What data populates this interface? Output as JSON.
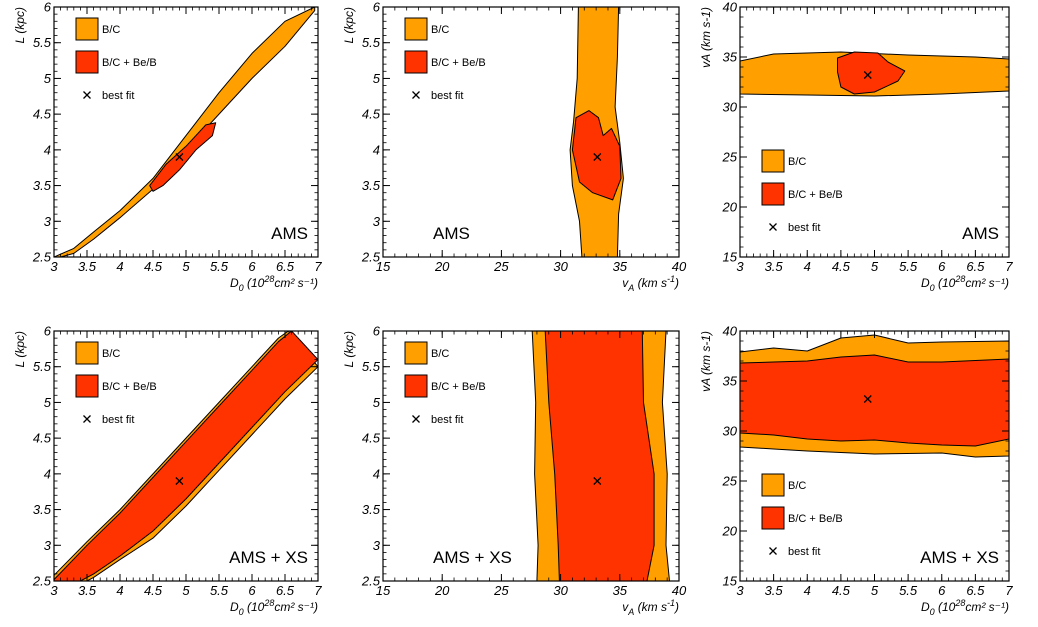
{
  "chart_data": [
    {
      "id": "p11",
      "type": "contour",
      "dataset": "AMS",
      "x": "D0",
      "y": "L",
      "xlabel_main": "D",
      "xlabel_sub": "0",
      "xlabel_unit_pre": "(10",
      "xlabel_unit_sup": "28",
      "xlabel_unit_post": "cm² s⁻¹)",
      "ylabel": "L (kpc)",
      "xlim": [
        3,
        7
      ],
      "ylim": [
        2.5,
        6
      ],
      "xticks": [
        "3",
        "3.5",
        "4",
        "4.5",
        "5",
        "5.5",
        "6",
        "6.5",
        "7"
      ],
      "yticks": [
        "2.5",
        "3",
        "3.5",
        "4",
        "4.5",
        "5",
        "5.5",
        "6"
      ],
      "legend": {
        "position": "top-left",
        "entries": [
          "B/C",
          "B/C + Be/B",
          "best fit"
        ]
      },
      "best_fit": [
        4.9,
        3.9
      ],
      "regions": [
        {
          "name": "B/C",
          "color": "#ffa000",
          "upper": [
            [
              3.0,
              2.5
            ],
            [
              3.3,
              2.62
            ],
            [
              3.6,
              2.85
            ],
            [
              4.0,
              3.15
            ],
            [
              4.5,
              3.6
            ],
            [
              5.0,
              4.2
            ],
            [
              5.5,
              4.8
            ],
            [
              6.0,
              5.35
            ],
            [
              6.5,
              5.8
            ],
            [
              6.95,
              6.0
            ]
          ],
          "lower": [
            [
              6.95,
              5.95
            ],
            [
              6.5,
              5.45
            ],
            [
              6.0,
              5.0
            ],
            [
              5.5,
              4.5
            ],
            [
              5.0,
              4.0
            ],
            [
              4.5,
              3.45
            ],
            [
              4.0,
              3.05
            ],
            [
              3.6,
              2.75
            ],
            [
              3.3,
              2.55
            ],
            [
              3.1,
              2.5
            ]
          ]
        },
        {
          "name": "B/C + Be/B",
          "color": "#ff3300",
          "boundary": [
            [
              4.45,
              3.5
            ],
            [
              4.7,
              3.8
            ],
            [
              5.0,
              4.05
            ],
            [
              5.3,
              4.35
            ],
            [
              5.45,
              4.38
            ],
            [
              5.4,
              4.2
            ],
            [
              5.15,
              4.0
            ],
            [
              4.9,
              3.72
            ],
            [
              4.65,
              3.5
            ],
            [
              4.5,
              3.42
            ]
          ]
        }
      ],
      "annotation": "AMS"
    },
    {
      "id": "p12",
      "type": "contour",
      "dataset": "AMS",
      "x": "vA",
      "y": "L",
      "xlabel_main": "v",
      "xlabel_sub": "A",
      "xlabel_unit_pre": "(km s",
      "xlabel_unit_sup": "-1",
      "xlabel_unit_post": ")",
      "ylabel": "L (kpc)",
      "xlim": [
        15,
        40
      ],
      "ylim": [
        2.5,
        6
      ],
      "xticks": [
        "15",
        "20",
        "25",
        "30",
        "35",
        "40"
      ],
      "yticks": [
        "2.5",
        "3",
        "3.5",
        "4",
        "4.5",
        "5",
        "5.5",
        "6"
      ],
      "legend": {
        "position": "top-left",
        "entries": [
          "B/C",
          "B/C + Be/B",
          "best fit"
        ]
      },
      "best_fit": [
        33.1,
        3.9
      ],
      "regions": [
        {
          "name": "B/C",
          "color": "#ffa000",
          "boundary": [
            [
              31.5,
              6.0
            ],
            [
              31.4,
              5.0
            ],
            [
              31.1,
              4.4
            ],
            [
              30.8,
              4.0
            ],
            [
              31.0,
              3.5
            ],
            [
              31.6,
              3.0
            ],
            [
              31.8,
              2.5
            ],
            [
              34.8,
              2.5
            ],
            [
              34.9,
              3.1
            ],
            [
              35.3,
              3.6
            ],
            [
              35.0,
              4.1
            ],
            [
              34.6,
              4.6
            ],
            [
              34.8,
              5.3
            ],
            [
              34.9,
              6.0
            ]
          ]
        },
        {
          "name": "B/C + Be/B",
          "color": "#ff3300",
          "boundary": [
            [
              31.3,
              4.45
            ],
            [
              31.0,
              4.0
            ],
            [
              31.6,
              3.55
            ],
            [
              32.7,
              3.4
            ],
            [
              34.4,
              3.3
            ],
            [
              35.1,
              3.6
            ],
            [
              35.0,
              4.05
            ],
            [
              34.3,
              4.3
            ],
            [
              33.6,
              4.2
            ],
            [
              33.2,
              4.45
            ],
            [
              32.4,
              4.55
            ]
          ]
        }
      ],
      "annotation": "AMS"
    },
    {
      "id": "p13",
      "type": "contour",
      "dataset": "AMS",
      "x": "D0",
      "y": "vA",
      "xlabel_main": "D",
      "xlabel_sub": "0",
      "xlabel_unit_pre": "(10",
      "xlabel_unit_sup": "28",
      "xlabel_unit_post": "cm² s⁻¹)",
      "ylabel": "vA (km s-1)",
      "xlim": [
        3,
        7
      ],
      "ylim": [
        15,
        40
      ],
      "xticks": [
        "3",
        "3.5",
        "4",
        "4.5",
        "5",
        "5.5",
        "6",
        "6.5",
        "7"
      ],
      "yticks": [
        "15",
        "20",
        "25",
        "30",
        "35",
        "40"
      ],
      "legend": {
        "position": "middle-left",
        "entries": [
          "B/C",
          "B/C + Be/B",
          "best fit"
        ]
      },
      "best_fit": [
        4.9,
        33.2
      ],
      "regions": [
        {
          "name": "B/C",
          "color": "#ffa000",
          "boundary": [
            [
              3.0,
              34.6
            ],
            [
              3.5,
              35.3
            ],
            [
              4.5,
              35.5
            ],
            [
              5.5,
              35.2
            ],
            [
              6.5,
              35.0
            ],
            [
              7.0,
              34.8
            ],
            [
              7.0,
              31.6
            ],
            [
              6.0,
              31.3
            ],
            [
              5.0,
              31.1
            ],
            [
              4.0,
              31.2
            ],
            [
              3.0,
              31.3
            ]
          ]
        },
        {
          "name": "B/C + Be/B",
          "color": "#ff3300",
          "boundary": [
            [
              4.45,
              34.9
            ],
            [
              4.7,
              35.5
            ],
            [
              5.05,
              35.4
            ],
            [
              5.2,
              34.5
            ],
            [
              5.45,
              33.6
            ],
            [
              5.35,
              32.6
            ],
            [
              5.0,
              31.5
            ],
            [
              4.7,
              31.3
            ],
            [
              4.5,
              32.0
            ],
            [
              4.45,
              33.5
            ]
          ]
        }
      ],
      "annotation": "AMS"
    },
    {
      "id": "p21",
      "type": "contour",
      "dataset": "AMS + XS",
      "x": "D0",
      "y": "L",
      "xlabel_main": "D",
      "xlabel_sub": "0",
      "xlabel_unit_pre": "(10",
      "xlabel_unit_sup": "28",
      "xlabel_unit_post": "cm² s⁻¹)",
      "ylabel": "L (kpc)",
      "xlim": [
        3,
        7
      ],
      "ylim": [
        2.5,
        6
      ],
      "xticks": [
        "3",
        "3.5",
        "4",
        "4.5",
        "5",
        "5.5",
        "6",
        "6.5",
        "7"
      ],
      "yticks": [
        "2.5",
        "3",
        "3.5",
        "4",
        "4.5",
        "5",
        "5.5",
        "6"
      ],
      "legend": {
        "position": "top-left",
        "entries": [
          "B/C",
          "B/C + Be/B",
          "best fit"
        ]
      },
      "best_fit": [
        4.9,
        3.9
      ],
      "regions": [
        {
          "name": "B/C",
          "color": "#ffa000",
          "upper": [
            [
              3.0,
              2.58
            ],
            [
              3.5,
              3.05
            ],
            [
              4.0,
              3.5
            ],
            [
              4.5,
              4.0
            ],
            [
              5.0,
              4.5
            ],
            [
              5.5,
              5.0
            ],
            [
              6.0,
              5.5
            ],
            [
              6.4,
              5.9
            ],
            [
              6.55,
              6.0
            ]
          ],
          "lower": [
            [
              7.0,
              5.5
            ],
            [
              6.5,
              5.05
            ],
            [
              6.0,
              4.55
            ],
            [
              5.5,
              4.05
            ],
            [
              5.0,
              3.55
            ],
            [
              4.5,
              3.1
            ],
            [
              4.0,
              2.8
            ],
            [
              3.6,
              2.55
            ],
            [
              3.5,
              2.5
            ],
            [
              3.0,
              2.5
            ]
          ]
        },
        {
          "name": "B/C + Be/B",
          "color": "#ff3300",
          "upper": [
            [
              3.0,
              2.52
            ],
            [
              3.5,
              3.0
            ],
            [
              4.0,
              3.45
            ],
            [
              4.5,
              3.95
            ],
            [
              5.0,
              4.45
            ],
            [
              5.5,
              4.95
            ],
            [
              6.0,
              5.45
            ],
            [
              6.4,
              5.85
            ],
            [
              6.6,
              6.0
            ]
          ],
          "lower": [
            [
              7.0,
              5.6
            ],
            [
              6.5,
              5.15
            ],
            [
              6.0,
              4.65
            ],
            [
              5.5,
              4.15
            ],
            [
              5.0,
              3.65
            ],
            [
              4.5,
              3.2
            ],
            [
              4.0,
              2.85
            ],
            [
              3.6,
              2.6
            ],
            [
              3.4,
              2.5
            ],
            [
              3.0,
              2.5
            ]
          ]
        }
      ],
      "annotation": "AMS + XS"
    },
    {
      "id": "p22",
      "type": "contour",
      "dataset": "AMS + XS",
      "x": "vA",
      "y": "L",
      "xlabel_main": "v",
      "xlabel_sub": "A",
      "xlabel_unit_pre": "(km s",
      "xlabel_unit_sup": "-1",
      "xlabel_unit_post": ")",
      "ylabel": "L (kpc)",
      "xlim": [
        15,
        40
      ],
      "ylim": [
        2.5,
        6
      ],
      "xticks": [
        "15",
        "20",
        "25",
        "30",
        "35",
        "40"
      ],
      "yticks": [
        "2.5",
        "3",
        "3.5",
        "4",
        "4.5",
        "5",
        "5.5",
        "6"
      ],
      "legend": {
        "position": "top-left",
        "entries": [
          "B/C",
          "B/C + Be/B",
          "best fit"
        ]
      },
      "best_fit": [
        33.1,
        3.9
      ],
      "regions": [
        {
          "name": "B/C",
          "color": "#ffa000",
          "boundary": [
            [
              27.6,
              6.0
            ],
            [
              27.9,
              5.0
            ],
            [
              27.8,
              4.0
            ],
            [
              28.1,
              3.0
            ],
            [
              28.0,
              2.5
            ],
            [
              39.2,
              2.5
            ],
            [
              38.9,
              3.0
            ],
            [
              39.0,
              4.0
            ],
            [
              38.6,
              5.0
            ],
            [
              38.9,
              6.0
            ]
          ]
        },
        {
          "name": "B/C + Be/B",
          "color": "#ff3300",
          "boundary": [
            [
              28.7,
              6.0
            ],
            [
              29.0,
              5.0
            ],
            [
              29.5,
              4.0
            ],
            [
              29.8,
              3.0
            ],
            [
              29.9,
              2.5
            ],
            [
              37.3,
              2.5
            ],
            [
              37.9,
              3.0
            ],
            [
              37.9,
              4.0
            ],
            [
              37.0,
              5.0
            ],
            [
              36.9,
              6.0
            ]
          ]
        }
      ],
      "annotation": "AMS + XS"
    },
    {
      "id": "p23",
      "type": "contour",
      "dataset": "AMS + XS",
      "x": "D0",
      "y": "vA",
      "xlabel_main": "D",
      "xlabel_sub": "0",
      "xlabel_unit_pre": "(10",
      "xlabel_unit_sup": "28",
      "xlabel_unit_post": "cm² s⁻¹)",
      "ylabel": "vA (km s-1)",
      "xlim": [
        3,
        7
      ],
      "ylim": [
        15,
        40
      ],
      "xticks": [
        "3",
        "3.5",
        "4",
        "4.5",
        "5",
        "5.5",
        "6",
        "6.5",
        "7"
      ],
      "yticks": [
        "15",
        "20",
        "25",
        "30",
        "35",
        "40"
      ],
      "legend": {
        "position": "middle-left",
        "entries": [
          "B/C",
          "B/C + Be/B",
          "best fit"
        ]
      },
      "best_fit": [
        4.9,
        33.2
      ],
      "regions": [
        {
          "name": "B/C",
          "color": "#ffa000",
          "boundary": [
            [
              3.0,
              37.9
            ],
            [
              3.5,
              38.3
            ],
            [
              4.0,
              38.0
            ],
            [
              4.5,
              39.3
            ],
            [
              5.0,
              39.6
            ],
            [
              5.5,
              38.8
            ],
            [
              6.0,
              38.9
            ],
            [
              7.0,
              39.0
            ],
            [
              7.0,
              27.5
            ],
            [
              6.5,
              27.4
            ],
            [
              6.0,
              27.8
            ],
            [
              5.0,
              27.7
            ],
            [
              4.0,
              28.0
            ],
            [
              3.5,
              28.2
            ],
            [
              3.0,
              28.4
            ]
          ]
        },
        {
          "name": "B/C + Be/B",
          "color": "#ff3300",
          "boundary": [
            [
              3.0,
              36.8
            ],
            [
              3.5,
              36.9
            ],
            [
              4.0,
              37.0
            ],
            [
              4.5,
              37.4
            ],
            [
              5.0,
              37.6
            ],
            [
              5.5,
              36.9
            ],
            [
              6.0,
              36.9
            ],
            [
              7.0,
              37.2
            ],
            [
              7.0,
              29.2
            ],
            [
              6.5,
              28.5
            ],
            [
              6.0,
              28.6
            ],
            [
              5.5,
              28.8
            ],
            [
              5.0,
              29.1
            ],
            [
              4.5,
              29.0
            ],
            [
              4.0,
              29.2
            ],
            [
              3.5,
              29.6
            ],
            [
              3.0,
              29.8
            ]
          ]
        }
      ],
      "annotation": "AMS + XS"
    }
  ]
}
